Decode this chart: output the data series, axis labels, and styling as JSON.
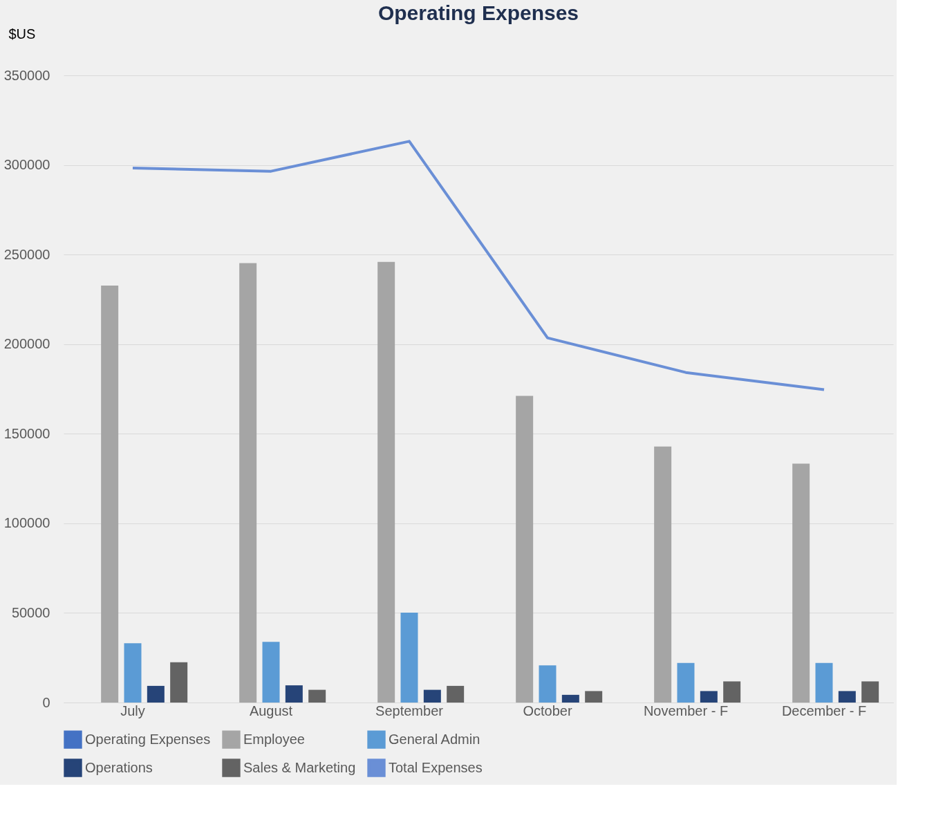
{
  "chart_data": {
    "type": "bar",
    "title": "Operating Expenses",
    "ylabel": "$US",
    "categories": [
      "July",
      "August",
      "September",
      "October",
      "November - F",
      "December - F"
    ],
    "series": [
      {
        "name": "Operating Expenses",
        "color": "#4472c4",
        "values": [
          null,
          null,
          null,
          null,
          null,
          null
        ]
      },
      {
        "name": "Employee",
        "color": "#a5a5a5",
        "values": [
          232700,
          245200,
          245900,
          171100,
          142900,
          133300
        ]
      },
      {
        "name": "General Admin",
        "color": "#5b9bd5",
        "values": [
          33100,
          33900,
          50200,
          20700,
          22100,
          22100
        ]
      },
      {
        "name": "Operations",
        "color": "#264478",
        "values": [
          9300,
          9600,
          7100,
          4300,
          6400,
          6400
        ]
      },
      {
        "name": "Sales & Marketing",
        "color": "#636363",
        "values": [
          22500,
          7100,
          9300,
          6400,
          11800,
          11800
        ]
      },
      {
        "name": "Total Expenses",
        "type": "line",
        "color": "#6a8fd6",
        "values": [
          298300,
          296500,
          313200,
          203500,
          184200,
          174600
        ]
      }
    ],
    "ylim": [
      0,
      350000
    ],
    "yticks": [
      0,
      50000,
      100000,
      150000,
      200000,
      250000,
      300000,
      350000
    ],
    "grid": "y",
    "legend": "bottom"
  }
}
